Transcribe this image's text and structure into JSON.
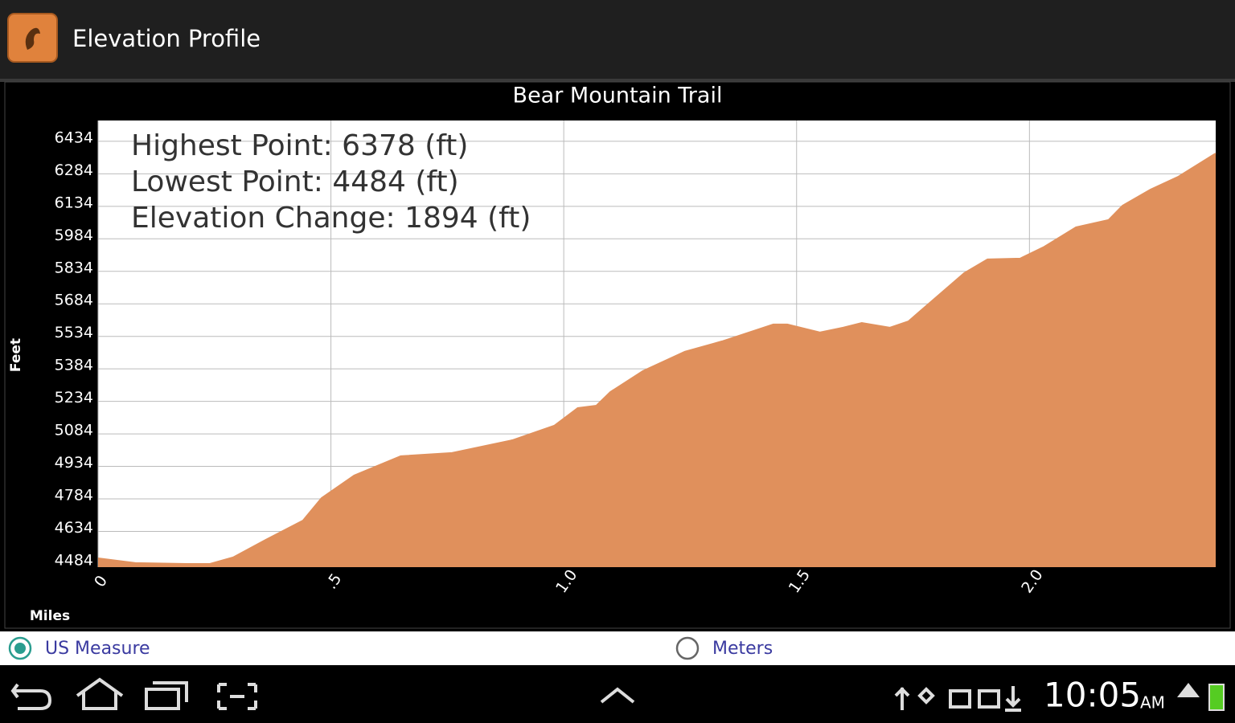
{
  "app_bar": {
    "title": "Elevation Profile"
  },
  "chart_data": {
    "type": "area",
    "title": "Bear Mountain Trail",
    "x_label": "Miles",
    "y_label": "Feet",
    "annotations": [
      "Highest Point: 6378 (ft)",
      "Lowest Point: 4484 (ft)",
      "Elevation Change: 1894 (ft)"
    ],
    "x": [
      0,
      0.08,
      0.19,
      0.24,
      0.29,
      0.36,
      0.44,
      0.48,
      0.55,
      0.65,
      0.76,
      0.89,
      0.98,
      1.03,
      1.07,
      1.1,
      1.17,
      1.26,
      1.34,
      1.45,
      1.48,
      1.55,
      1.6,
      1.64,
      1.7,
      1.74,
      1.79,
      1.86,
      1.91,
      1.98,
      2.03,
      2.1,
      2.17,
      2.2,
      2.26,
      2.32,
      2.4
    ],
    "values": [
      4510,
      4488,
      4484,
      4484,
      4514,
      4595,
      4684,
      4788,
      4892,
      4981,
      4996,
      5055,
      5122,
      5203,
      5214,
      5277,
      5374,
      5463,
      5511,
      5589,
      5589,
      5552,
      5574,
      5596,
      5574,
      5603,
      5696,
      5826,
      5889,
      5893,
      5945,
      6037,
      6071,
      6137,
      6211,
      6271,
      6378
    ],
    "color": "#e0905c",
    "xlim": [
      0,
      2.4
    ],
    "xticks": [
      0,
      {
        "value": 0.5,
        "label": ".5"
      },
      {
        "value": 1,
        "label": "1.0"
      },
      1.5,
      {
        "value": 2,
        "label": "2.0"
      }
    ],
    "ylim": [
      4469,
      6530
    ],
    "yticks": [
      4484,
      4634,
      4784,
      4934,
      5084,
      5234,
      5384,
      5534,
      5684,
      5834,
      5984,
      6134,
      6284,
      6434
    ],
    "grid": true
  },
  "unit_options": [
    {
      "label": "US Measure",
      "selected": true
    },
    {
      "label": "Meters",
      "selected": false
    }
  ],
  "status_bar": {
    "time": "10:05",
    "meridiem": "AM"
  }
}
